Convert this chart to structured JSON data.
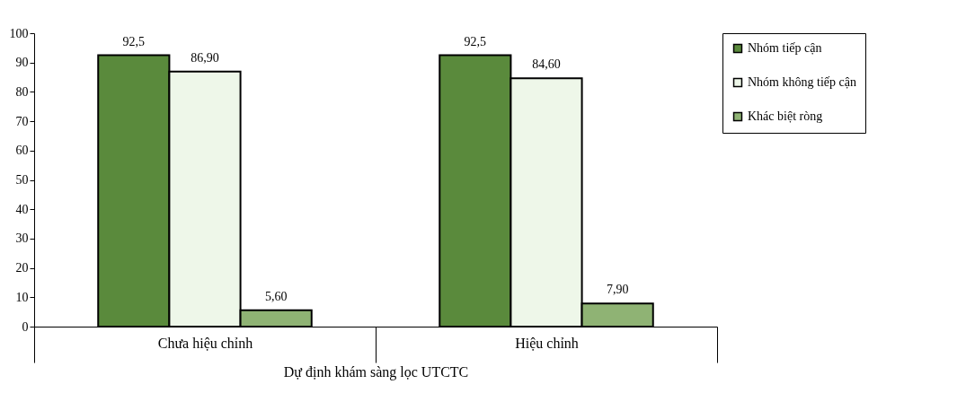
{
  "chart_data": {
    "type": "bar",
    "xlabel": "Dự định khám sàng lọc UTCTC",
    "categories": [
      "Chưa hiệu chỉnh",
      "Hiệu chỉnh"
    ],
    "series": [
      {
        "name": "Nhóm tiếp cận",
        "color": "#5a8a3c",
        "values": [
          92.5,
          92.5
        ],
        "value_labels": [
          "92,5",
          "92,5"
        ]
      },
      {
        "name": "Nhóm không tiếp cận",
        "color": "#eef7e9",
        "values": [
          86.9,
          84.6
        ],
        "value_labels": [
          "86,90",
          "84,60"
        ]
      },
      {
        "name": "Khác biệt ròng",
        "color": "#8fb374",
        "values": [
          5.6,
          7.9
        ],
        "value_labels": [
          "5,60",
          "7,90"
        ]
      }
    ],
    "ylim": [
      0,
      100
    ],
    "yticks": [
      0,
      10,
      20,
      30,
      40,
      50,
      60,
      70,
      80,
      90,
      100
    ],
    "grid": false,
    "legend": "right"
  }
}
